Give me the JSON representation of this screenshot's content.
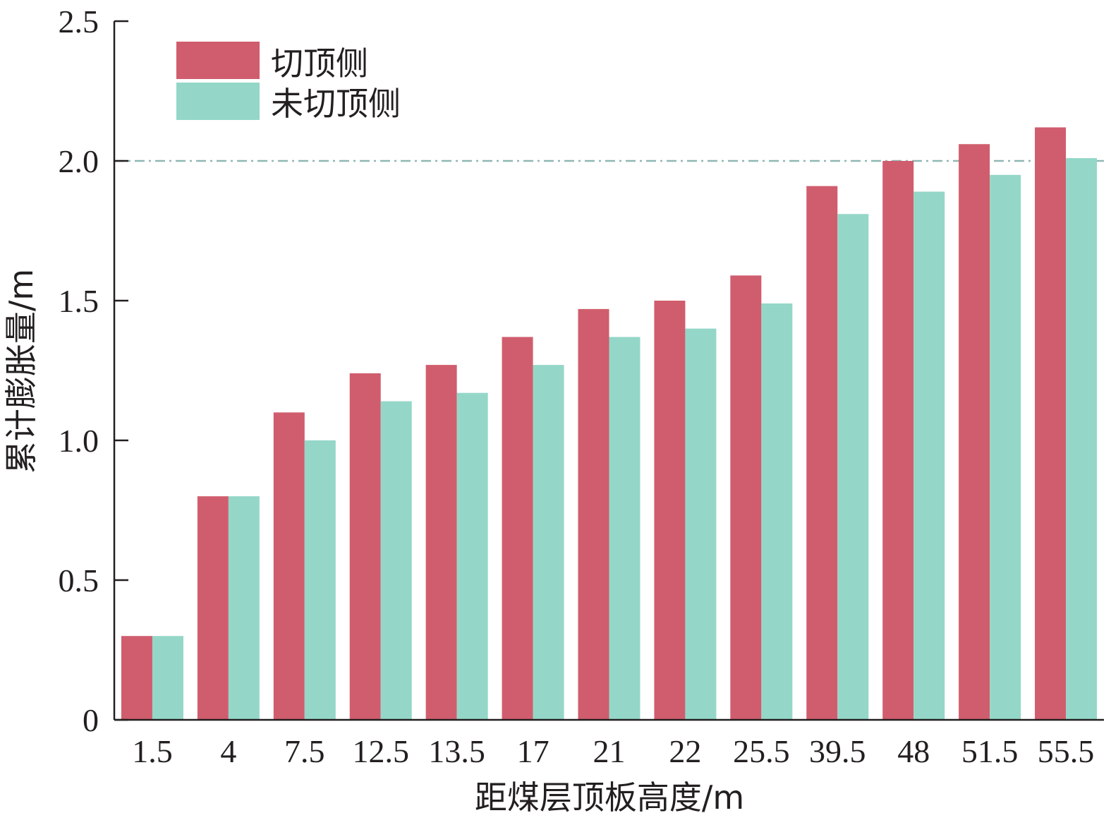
{
  "chart_data": {
    "type": "bar",
    "xlabel": "距煤层顶板高度/m",
    "ylabel": "累计膨胀量/m",
    "categories": [
      "1.5",
      "4",
      "7.5",
      "12.5",
      "13.5",
      "17",
      "21",
      "22",
      "25.5",
      "39.5",
      "48",
      "51.5",
      "55.5"
    ],
    "series": [
      {
        "name": "切顶侧",
        "color": "#d05d6d",
        "values": [
          0.3,
          0.8,
          1.1,
          1.24,
          1.27,
          1.37,
          1.47,
          1.5,
          1.59,
          1.91,
          2.0,
          2.06,
          2.12
        ]
      },
      {
        "name": "未切顶侧",
        "color": "#94d7c8",
        "values": [
          0.3,
          0.8,
          1.0,
          1.14,
          1.17,
          1.27,
          1.37,
          1.4,
          1.49,
          1.81,
          1.89,
          1.95,
          2.01
        ]
      }
    ],
    "ylim": [
      0,
      2.5
    ],
    "yticks": [
      {
        "value": 0,
        "label": "0"
      },
      {
        "value": 0.5,
        "label": "0.5"
      },
      {
        "value": 1.0,
        "label": "1.0"
      },
      {
        "value": 1.5,
        "label": "1.5"
      },
      {
        "value": 2.0,
        "label": "2.0"
      },
      {
        "value": 2.5,
        "label": "2.5"
      }
    ],
    "reference_line": {
      "value": 2.0,
      "style": "dash-dot",
      "color": "#8fb8b4"
    },
    "legend_position": "top-left",
    "grid": false
  }
}
